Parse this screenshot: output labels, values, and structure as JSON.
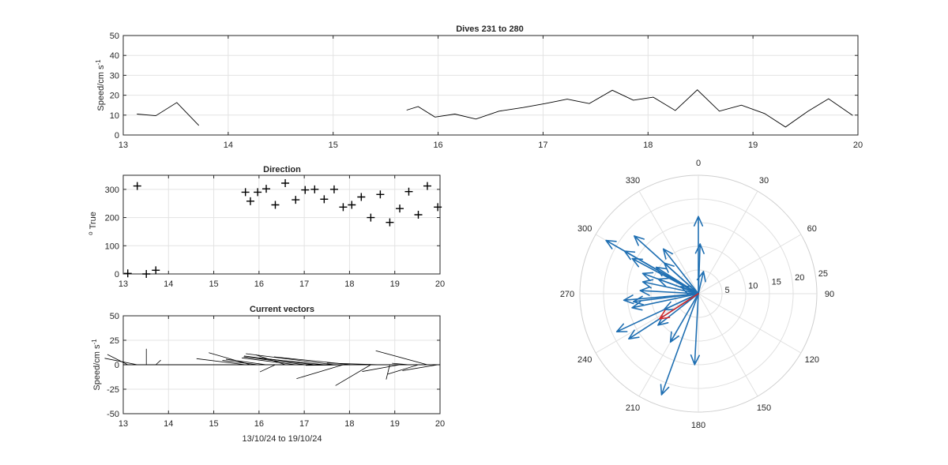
{
  "chart_data": [
    {
      "id": "speed",
      "type": "line",
      "title": "Dives 231 to 280",
      "ylabel": "Speed/cm s",
      "ylabel_sup": "-1",
      "xlabel": "",
      "xlim": [
        13,
        20
      ],
      "ylim": [
        0,
        50
      ],
      "xticks": [
        13,
        14,
        15,
        16,
        17,
        18,
        19,
        20
      ],
      "yticks": [
        0,
        10,
        20,
        30,
        40,
        50
      ],
      "grid": true,
      "segments": [
        [
          [
            13.13,
            10.5
          ],
          [
            13.31,
            9.7
          ],
          [
            13.51,
            16.3
          ],
          [
            13.72,
            4.8
          ]
        ],
        [
          [
            15.7,
            12.5
          ],
          [
            15.81,
            14.3
          ],
          [
            15.97,
            9.0
          ],
          [
            16.16,
            10.5
          ],
          [
            16.36,
            8.0
          ],
          [
            16.58,
            12.0
          ],
          [
            16.81,
            13.8
          ],
          [
            17.02,
            15.8
          ],
          [
            17.23,
            18.0
          ],
          [
            17.44,
            15.8
          ],
          [
            17.66,
            22.5
          ],
          [
            17.86,
            17.5
          ],
          [
            18.05,
            19.0
          ],
          [
            18.26,
            12.3
          ],
          [
            18.47,
            22.7
          ],
          [
            18.68,
            12.0
          ],
          [
            18.89,
            15.0
          ],
          [
            19.11,
            10.8
          ],
          [
            19.31,
            4.0
          ],
          [
            19.52,
            11.8
          ],
          [
            19.72,
            18.2
          ],
          [
            19.95,
            9.8
          ]
        ]
      ]
    },
    {
      "id": "direction",
      "type": "scatter",
      "title": "Direction",
      "ylabel": "True",
      "ylabel_prefix": "o",
      "xlim": [
        13,
        20
      ],
      "ylim": [
        0,
        350
      ],
      "xticks": [
        13,
        14,
        15,
        16,
        17,
        18,
        19,
        20
      ],
      "yticks": [
        0,
        100,
        200,
        300
      ],
      "grid": true,
      "marker": "+",
      "points": [
        [
          13.1,
          2
        ],
        [
          13.31,
          312
        ],
        [
          13.51,
          0
        ],
        [
          13.72,
          13
        ],
        [
          15.7,
          290
        ],
        [
          15.81,
          258
        ],
        [
          15.97,
          290
        ],
        [
          16.16,
          302
        ],
        [
          16.36,
          245
        ],
        [
          16.58,
          322
        ],
        [
          16.81,
          263
        ],
        [
          17.02,
          298
        ],
        [
          17.23,
          300
        ],
        [
          17.44,
          265
        ],
        [
          17.66,
          300
        ],
        [
          17.86,
          237
        ],
        [
          18.05,
          245
        ],
        [
          18.26,
          273
        ],
        [
          18.47,
          200
        ],
        [
          18.68,
          282
        ],
        [
          18.89,
          183
        ],
        [
          19.11,
          232
        ],
        [
          19.31,
          292
        ],
        [
          19.52,
          210
        ],
        [
          19.72,
          312
        ],
        [
          19.95,
          237
        ]
      ]
    },
    {
      "id": "vectors",
      "type": "vector",
      "title": "Current vectors",
      "ylabel": "Speed/cm s",
      "ylabel_sup": "-1",
      "xlabel": "13/10/24 to 19/10/24",
      "xlim": [
        13,
        20
      ],
      "ylim": [
        -50,
        50
      ],
      "xticks": [
        13,
        14,
        15,
        16,
        17,
        18,
        19,
        20
      ],
      "yticks": [
        -50,
        -25,
        0,
        25,
        50
      ],
      "grid": true,
      "baseline": [
        13,
        20
      ],
      "vectors": [
        [
          13.1,
          -4.5,
          10.5
        ],
        [
          13.31,
          -7.2,
          6.6
        ],
        [
          13.51,
          0,
          16.3
        ],
        [
          13.72,
          1.1,
          4.7
        ],
        [
          15.7,
          -10.8,
          6.2
        ],
        [
          15.81,
          -9.2,
          12.3
        ],
        [
          15.97,
          -7.8,
          4.5
        ],
        [
          16.16,
          -8.9,
          5.6
        ],
        [
          16.36,
          -3.4,
          -7.3
        ],
        [
          16.58,
          -6.5,
          10.1
        ],
        [
          16.81,
          -11.9,
          7.0
        ],
        [
          17.02,
          -13.6,
          8.1
        ],
        [
          17.23,
          -15.6,
          9.0
        ],
        [
          17.44,
          -14.3,
          6.7
        ],
        [
          17.66,
          -19.5,
          11.3
        ],
        [
          17.86,
          -10.3,
          -14.2
        ],
        [
          18.05,
          -17.2,
          8.0
        ],
        [
          18.26,
          -12.3,
          -0.6
        ],
        [
          18.47,
          -7.8,
          -21.3
        ],
        [
          18.68,
          -11.8,
          1.7
        ],
        [
          18.89,
          -0.8,
          -15.0
        ],
        [
          19.11,
          -8.3,
          -6.9
        ],
        [
          19.31,
          -3.7,
          1.5
        ],
        [
          19.52,
          -6.8,
          -9.7
        ],
        [
          19.72,
          -11.4,
          14.3
        ],
        [
          19.95,
          -7.8,
          -6.0
        ]
      ]
    },
    {
      "id": "polar",
      "type": "compass",
      "rmax": 25,
      "rticks": [
        5,
        10,
        15,
        20,
        25
      ],
      "angle_labels": [
        "0",
        "30",
        "60",
        "90",
        "120",
        "150",
        "180",
        "210",
        "240",
        "270",
        "300",
        "330"
      ],
      "vector_color": "#1f6fb2",
      "highlight_color": "#d62728",
      "vectors": [
        [
          2,
          10.5
        ],
        [
          312,
          9.7
        ],
        [
          0,
          16.3
        ],
        [
          13,
          4.8
        ],
        [
          290,
          12.5
        ],
        [
          258,
          14.3
        ],
        [
          290,
          9.0
        ],
        [
          302,
          10.5
        ],
        [
          245,
          8.0
        ],
        [
          322,
          12.0
        ],
        [
          263,
          13.8
        ],
        [
          298,
          15.8
        ],
        [
          300,
          18.0
        ],
        [
          265,
          15.8
        ],
        [
          300,
          22.5
        ],
        [
          237,
          17.5
        ],
        [
          245,
          19.0
        ],
        [
          273,
          12.3
        ],
        [
          200,
          22.7
        ],
        [
          282,
          12.0
        ],
        [
          183,
          15.0
        ],
        [
          232,
          10.8
        ],
        [
          292,
          4.0
        ],
        [
          210,
          11.8
        ],
        [
          312,
          18.2
        ],
        [
          237,
          9.8
        ]
      ],
      "highlight_index": 25
    }
  ]
}
